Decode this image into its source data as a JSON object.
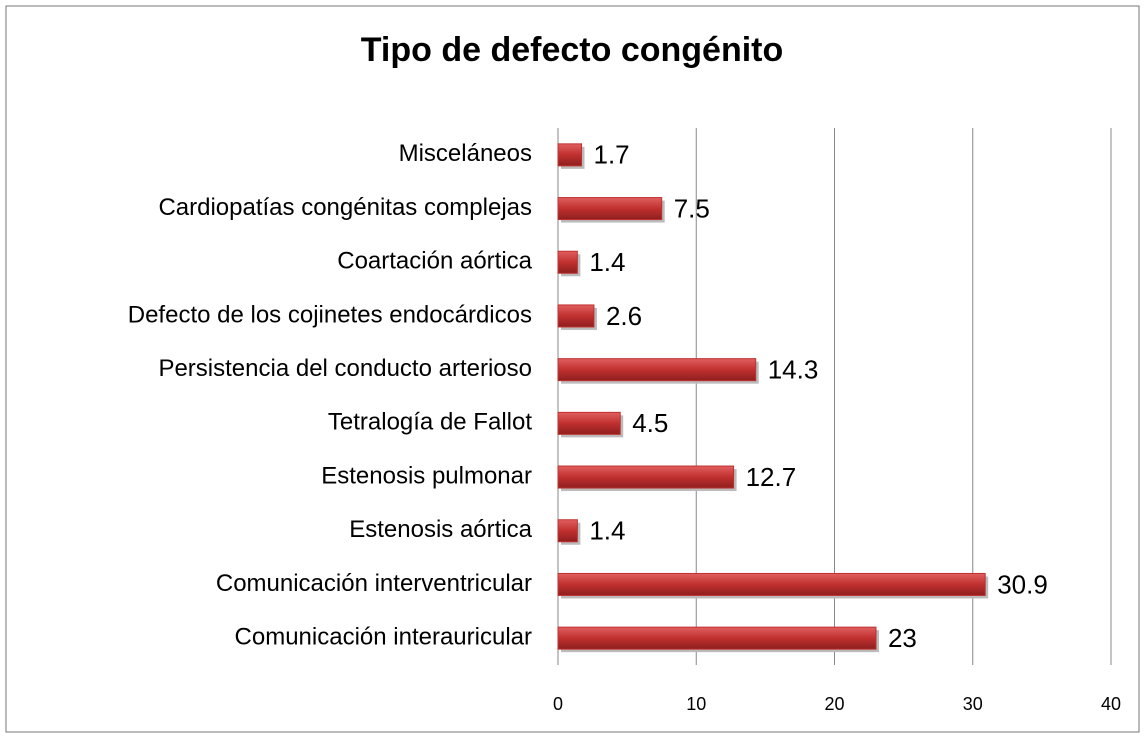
{
  "chart_data": {
    "type": "bar",
    "orientation": "horizontal",
    "title": "Tipo de defecto congénito",
    "categories": [
      "Comunicación interauricular",
      "Comunicación interventricular",
      "Estenosis aórtica",
      "Estenosis pulmonar",
      "Tetralogía de Fallot",
      "Persistencia del conducto arterioso",
      "Defecto de los cojinetes endocárdicos",
      "Coartación aórtica",
      "Cardiopatías congénitas complejas",
      "Misceláneos"
    ],
    "values": [
      23,
      30.9,
      1.4,
      12.7,
      4.5,
      14.3,
      2.6,
      1.4,
      7.5,
      1.7
    ],
    "color": "#c0302f",
    "xlim": [
      0,
      40
    ],
    "xticks": [
      0,
      10,
      20,
      30,
      40
    ],
    "grid": true
  }
}
